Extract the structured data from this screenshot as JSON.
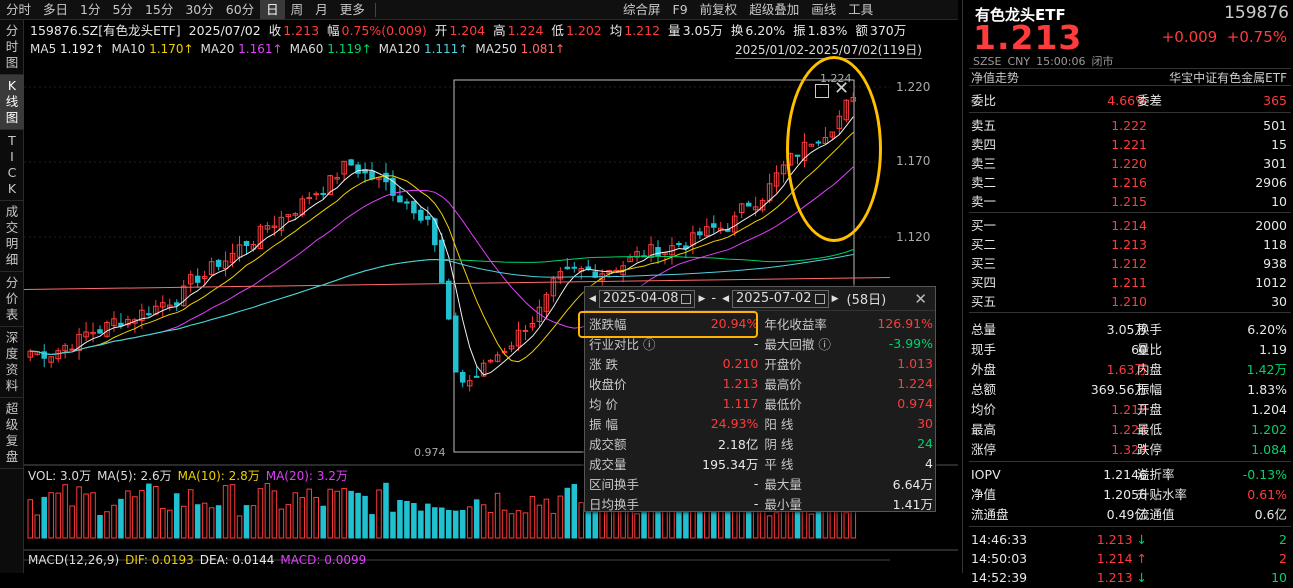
{
  "topbar": {
    "tabs": [
      {
        "label": "分时",
        "active": false
      },
      {
        "label": "多日",
        "active": false
      },
      {
        "label": "1分",
        "active": false
      },
      {
        "label": "5分",
        "active": false
      },
      {
        "label": "15分",
        "active": false
      },
      {
        "label": "30分",
        "active": false
      },
      {
        "label": "60分",
        "active": false
      },
      {
        "label": "日",
        "active": true
      },
      {
        "label": "周",
        "active": false
      },
      {
        "label": "月",
        "active": false
      },
      {
        "label": "更多",
        "active": false
      }
    ],
    "tools": [
      "综合屏",
      "F9",
      "前复权",
      "超级叠加",
      "画线",
      "工具"
    ],
    "info": {
      "code": "159876.SZ[有色龙头ETF]",
      "date": "2025/07/02",
      "close_label": "收",
      "close": "1.213",
      "amp_label": "幅",
      "amp": "0.75%(0.009)",
      "open_label": "开",
      "open": "1.204",
      "high_label": "高",
      "high": "1.224",
      "low_label": "低",
      "low": "1.202",
      "avg_label": "均",
      "avg": "1.212",
      "vol_label": "量",
      "vol": "3.05万",
      "turn_label": "换",
      "turn": "6.20%",
      "swing_label": "振",
      "swing": "1.83%",
      "amt_label": "额",
      "amt": "370万"
    }
  },
  "leftnav": [
    {
      "label": "分时图",
      "active": false
    },
    {
      "label": "K线图",
      "active": true
    },
    {
      "label": "TICK",
      "active": false
    },
    {
      "label": "成交明细",
      "active": false
    },
    {
      "label": "分价表",
      "active": false
    },
    {
      "label": "深度资料",
      "active": false
    },
    {
      "label": "超级复盘",
      "active": false
    }
  ],
  "ma_legend": {
    "title": "159876.SZ[有色龙头ETF]",
    "items": [
      {
        "name": "MA5",
        "value": "1.192↑",
        "color": "#f0f0f0"
      },
      {
        "name": "MA10",
        "value": "1.170↑",
        "color": "#f0d000"
      },
      {
        "name": "MA20",
        "value": "1.161↑",
        "color": "#e040fb"
      },
      {
        "name": "MA60",
        "value": "1.119↑",
        "color": "#00d26a"
      },
      {
        "name": "MA120",
        "value": "1.111↑",
        "color": "#4fd0e0"
      },
      {
        "name": "MA250",
        "value": "1.081↑",
        "color": "#ff6b6b"
      }
    ]
  },
  "date_range": "2025/01/02-2025/07/02(119日)",
  "y_axis": [
    "1.220",
    "1.170",
    "1.120"
  ],
  "chart_marks": {
    "high": "1.224",
    "low": "0.974"
  },
  "vol_legend": {
    "vol": "VOL: 3.0万",
    "ma5": "MA(5): 2.6万",
    "ma10": "MA(10): 2.8万",
    "ma20": "MA(20): 3.2万"
  },
  "macd_legend": {
    "title": "MACD(12,26,9)",
    "dif": "DIF: 0.0193",
    "dea": "DEA: 0.0144",
    "macd": "MACD: 0.0099"
  },
  "popup": {
    "start": "2025-04-08",
    "end": "2025-07-02",
    "days": "(58日)",
    "rows": [
      {
        "k1": "涨跌幅",
        "v1": "20.94%",
        "c1": "red",
        "k2": "年化收益率",
        "v2": "126.91%",
        "c2": "red"
      },
      {
        "k1": "行业对比 ⓘ",
        "v1": "-",
        "c1": "white",
        "k2": "最大回撤 ⓘ",
        "v2": "-3.99%",
        "c2": "green"
      },
      {
        "k1": "涨  跌",
        "v1": "0.210",
        "c1": "red",
        "k2": "开盘价",
        "v2": "1.013",
        "c2": "red"
      },
      {
        "k1": "收盘价",
        "v1": "1.213",
        "c1": "red",
        "k2": "最高价",
        "v2": "1.224",
        "c2": "red"
      },
      {
        "k1": "均  价",
        "v1": "1.117",
        "c1": "red",
        "k2": "最低价",
        "v2": "0.974",
        "c2": "red"
      },
      {
        "k1": "振  幅",
        "v1": "24.93%",
        "c1": "red",
        "k2": "阳  线",
        "v2": "30",
        "c2": "red"
      },
      {
        "k1": "成交额",
        "v1": "2.18亿",
        "c1": "white",
        "k2": "阴  线",
        "v2": "24",
        "c2": "green"
      },
      {
        "k1": "成交量",
        "v1": "195.34万",
        "c1": "white",
        "k2": "平  线",
        "v2": "4",
        "c2": "white"
      },
      {
        "k1": "区间换手",
        "v1": "-",
        "c1": "white",
        "k2": "最大量",
        "v2": "6.64万",
        "c2": "white"
      },
      {
        "k1": "日均换手",
        "v1": "-",
        "c1": "white",
        "k2": "最小量",
        "v2": "1.41万",
        "c2": "white"
      }
    ]
  },
  "right": {
    "title": "有色龙头ETF",
    "code": "159876",
    "price": "1.213",
    "change": "+0.009",
    "pct": "+0.75%",
    "meta": [
      "SZSE",
      "CNY",
      "15:00:06",
      "闭市"
    ],
    "nav_left": "净值走势",
    "nav_right": "华宝中证有色金属ETF",
    "ratio": {
      "k1": "委比",
      "v1": "4.66%",
      "k2": "委差",
      "v2": "365"
    },
    "asks": [
      {
        "k": "卖五",
        "p": "1.222",
        "q": "501"
      },
      {
        "k": "卖四",
        "p": "1.221",
        "q": "15"
      },
      {
        "k": "卖三",
        "p": "1.220",
        "q": "301"
      },
      {
        "k": "卖二",
        "p": "1.216",
        "q": "2906"
      },
      {
        "k": "卖一",
        "p": "1.215",
        "q": "10"
      }
    ],
    "bids": [
      {
        "k": "买一",
        "p": "1.214",
        "q": "2000"
      },
      {
        "k": "买二",
        "p": "1.213",
        "q": "118"
      },
      {
        "k": "买三",
        "p": "1.212",
        "q": "938"
      },
      {
        "k": "买四",
        "p": "1.211",
        "q": "1012"
      },
      {
        "k": "买五",
        "p": "1.210",
        "q": "30"
      }
    ],
    "stats": [
      {
        "k1": "总量",
        "v1": "3.05万",
        "c1": "white",
        "k2": "换手",
        "v2": "6.20%",
        "c2": "white"
      },
      {
        "k1": "现手",
        "v1": "60",
        "c1": "white",
        "k2": "量比",
        "v2": "1.19",
        "c2": "white"
      },
      {
        "k1": "外盘",
        "v1": "1.63万",
        "c1": "red",
        "k2": "内盘",
        "v2": "1.42万",
        "c2": "green"
      },
      {
        "k1": "总额",
        "v1": "369.56万",
        "c1": "white",
        "k2": "振幅",
        "v2": "1.83%",
        "c2": "white"
      },
      {
        "k1": "均价",
        "v1": "1.212",
        "c1": "red",
        "k2": "开盘",
        "v2": "1.204",
        "c2": "white"
      },
      {
        "k1": "最高",
        "v1": "1.224",
        "c1": "red",
        "k2": "最低",
        "v2": "1.202",
        "c2": "green"
      },
      {
        "k1": "涨停",
        "v1": "1.324",
        "c1": "red",
        "k2": "跌停",
        "v2": "1.084",
        "c2": "green"
      }
    ],
    "stats2": [
      {
        "k1": "IOPV",
        "v1": "1.2146",
        "c1": "white",
        "k2": "溢折率",
        "v2": "-0.13%",
        "c2": "green"
      },
      {
        "k1": "净值",
        "v1": "1.2056",
        "c1": "white",
        "k2": "升贴水率",
        "v2": "0.61%",
        "c2": "red"
      },
      {
        "k1": "流通盘",
        "v1": "0.49亿",
        "c1": "white",
        "k2": "流通值",
        "v2": "0.6亿",
        "c2": "white"
      }
    ],
    "ticks": [
      {
        "t": "14:46:33",
        "p": "1.213",
        "dir": "↓",
        "q": "2",
        "c": "green"
      },
      {
        "t": "14:50:03",
        "p": "1.214",
        "dir": "↑",
        "q": "2",
        "c": "red"
      },
      {
        "t": "14:52:39",
        "p": "1.213",
        "dir": "↓",
        "q": "10",
        "c": "green"
      }
    ]
  }
}
